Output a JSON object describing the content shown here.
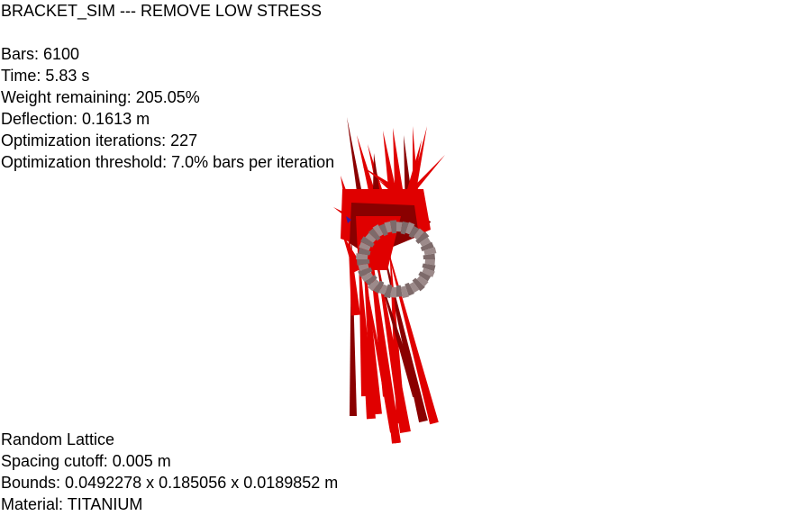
{
  "title": "BRACKET_SIM --- REMOVE LOW STRESS",
  "stats": {
    "bars": "Bars: 6100",
    "time": "Time: 5.83 s",
    "weight": "Weight remaining: 205.05%",
    "deflection": "Deflection: 0.1613 m",
    "iterations": "Optimization iterations: 227",
    "threshold": "Optimization threshold: 7.0% bars per iteration"
  },
  "info": {
    "lattice": "Random Lattice",
    "spacing": "Spacing cutoff: 0.005 m",
    "bounds": "Bounds: 0.0492278 x 0.185056 x 0.0189852 m",
    "material": "Material: TITANIUM"
  },
  "colors": {
    "background": "#ffffff",
    "text": "#000000",
    "bar_high_stress": "#e00000",
    "bar_dark": "#8a0000",
    "ring": "#7d6a6a",
    "ring_light": "#9c8a8a",
    "accent_low": "#3a1aa0"
  }
}
